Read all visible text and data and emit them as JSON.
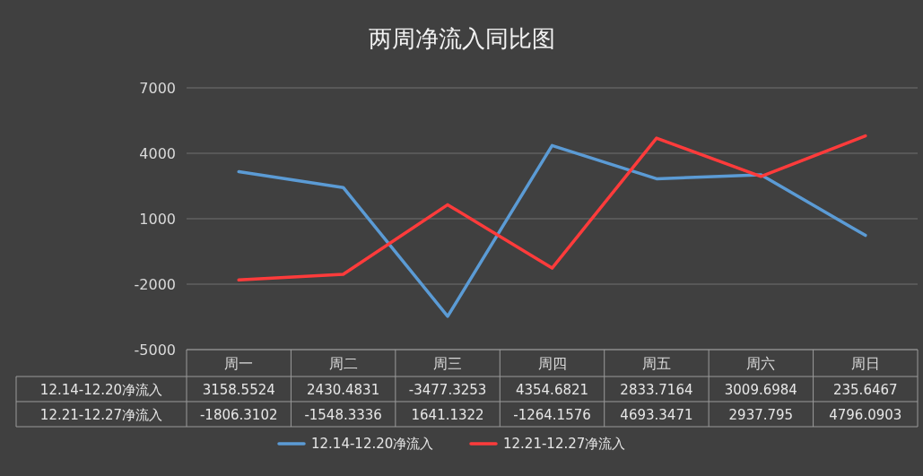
{
  "chart_data": {
    "type": "line",
    "title": "两周净流入同比图",
    "categories": [
      "周一",
      "周二",
      "周三",
      "周四",
      "周五",
      "周六",
      "周日"
    ],
    "series": [
      {
        "name": "12.14-12.20净流入",
        "color": "#5b9bd5",
        "values": [
          3158.5524,
          2430.4831,
          -3477.3253,
          4354.6821,
          2833.7164,
          3009.6984,
          235.6467
        ]
      },
      {
        "name": "12.21-12.27净流入",
        "color": "#ff3b3b",
        "values": [
          -1806.3102,
          -1548.3336,
          1641.1322,
          -1264.1576,
          4693.3471,
          2937.795,
          4796.0903
        ]
      }
    ],
    "ylim": [
      -5000,
      7000
    ],
    "yticks": [
      -5000,
      -2000,
      1000,
      4000,
      7000
    ],
    "grid": "y",
    "legend": "bottom",
    "data_labels": true,
    "line_style": "solid"
  }
}
